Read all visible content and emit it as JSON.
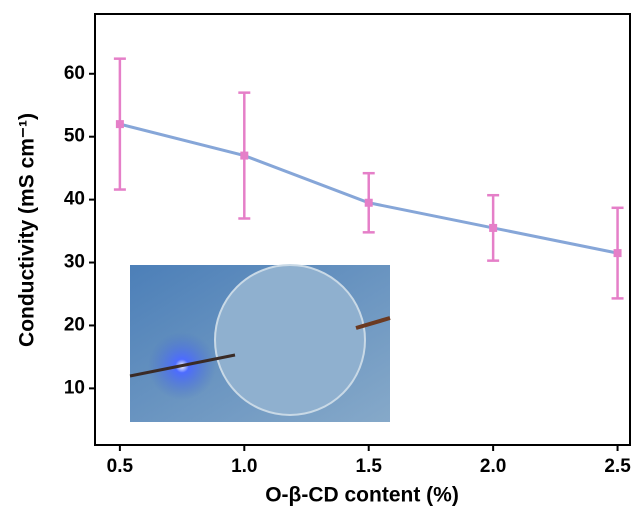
{
  "chart_data": {
    "type": "line",
    "x_label": "O-β-CD content (%)",
    "y_label": "Conductivity (mS cm⁻¹)",
    "x": [
      0.5,
      1.0,
      1.5,
      2.0,
      2.5
    ],
    "series": [
      {
        "color": "#86a6d8",
        "marker_color": "#e57fc8",
        "values": [
          52,
          47,
          39.5,
          35.5,
          31.5
        ],
        "errors": [
          10.4,
          10,
          4.7,
          5.2,
          7.2
        ]
      }
    ],
    "xlim": [
      0.4,
      2.55
    ],
    "ylim": [
      1,
      69.5
    ],
    "xticks": [
      {
        "value": 0.5,
        "label": "0.5"
      },
      {
        "value": 1.0,
        "label": "1.0"
      },
      {
        "value": 1.5,
        "label": "1.5"
      },
      {
        "value": 2.0,
        "label": "2.0"
      },
      {
        "value": 2.5,
        "label": "2.5"
      }
    ],
    "yticks": [
      10,
      20,
      30,
      40,
      50,
      60
    ]
  }
}
